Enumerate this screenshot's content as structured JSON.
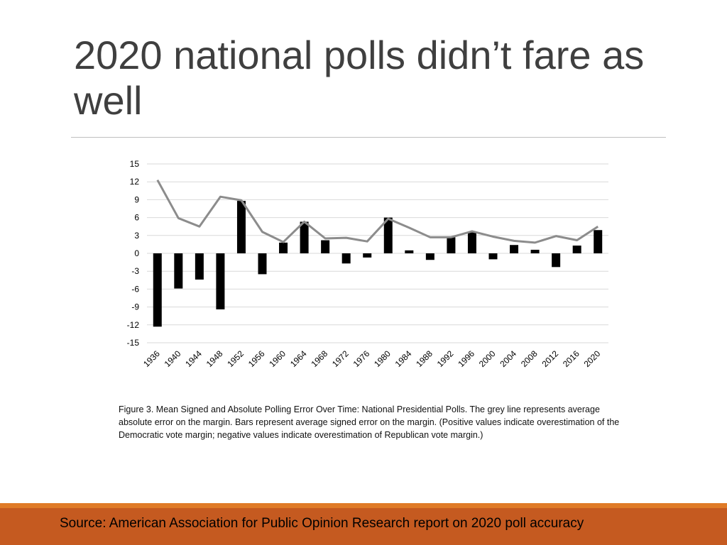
{
  "slide": {
    "title": "2020 national polls didn’t fare as well",
    "caption": "Figure 3. Mean Signed and Absolute Polling Error Over Time: National Presidential Polls. The grey line represents average absolute error on the margin. Bars represent average signed error on the margin. (Positive values indicate overestimation of the Democratic vote margin; negative values indicate overestimation of Republican vote margin.)",
    "source": "Source: American Association for Public Opinion Research report on 2020 poll accuracy"
  },
  "colors": {
    "title": "#3f3f3f",
    "bar": "#000000",
    "line": "#8c8c8c",
    "grid": "#d9d9d9",
    "footer": "#c55a20",
    "footer_accent": "#e07b27"
  },
  "chart_data": {
    "type": "bar",
    "categories": [
      "1936",
      "1940",
      "1944",
      "1948",
      "1952",
      "1956",
      "1960",
      "1964",
      "1968",
      "1972",
      "1976",
      "1980",
      "1984",
      "1988",
      "1992",
      "1996",
      "2000",
      "2004",
      "2008",
      "2012",
      "2016",
      "2020"
    ],
    "series": [
      {
        "type": "bar",
        "values": [
          -12.3,
          -5.9,
          -4.4,
          -9.4,
          8.8,
          -3.5,
          1.8,
          5.3,
          2.2,
          -1.7,
          -0.7,
          6.0,
          0.5,
          -1.1,
          2.7,
          3.5,
          -1.0,
          1.4,
          0.6,
          -2.3,
          1.3,
          3.9
        ]
      },
      {
        "type": "line",
        "values": [
          12.3,
          5.9,
          4.5,
          9.5,
          8.9,
          3.6,
          1.9,
          5.3,
          2.5,
          2.6,
          2.0,
          5.8,
          4.3,
          2.7,
          2.7,
          3.7,
          2.8,
          2.1,
          1.8,
          2.9,
          2.2,
          4.5
        ]
      }
    ],
    "yticks": [
      15,
      12,
      9,
      6,
      3,
      0,
      -3,
      -6,
      -9,
      -12,
      -15
    ],
    "ylim": [
      -15,
      15
    ],
    "grid": true,
    "legend": "none"
  }
}
